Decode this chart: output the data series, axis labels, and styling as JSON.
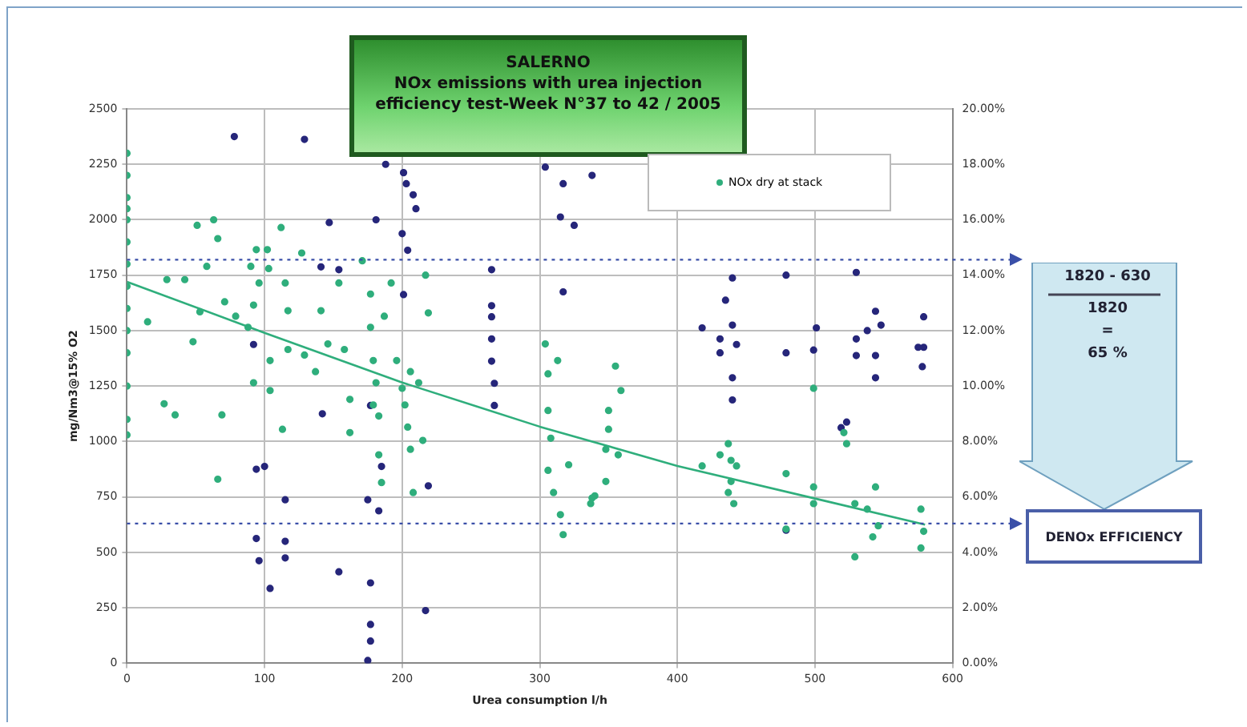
{
  "chart_data": {
    "type": "scatter",
    "title": "SALERNO",
    "subtitle": "NOx emissions with urea injection efficiency test-Week N°37 to 42 / 2005",
    "xlabel": "Urea consumption l/h",
    "ylabel": "mg/Nm3@15% O2",
    "xlim": [
      0,
      600
    ],
    "xticks": [
      0,
      100,
      200,
      300,
      400,
      500,
      600
    ],
    "ylim": [
      0,
      2500
    ],
    "yticks": [
      0,
      250,
      500,
      750,
      1000,
      1250,
      1500,
      1750,
      2000,
      2250,
      2500
    ],
    "y2lim": [
      0,
      20
    ],
    "y2ticks": [
      {
        "value": 0,
        "label": "0.00%"
      },
      {
        "value": 2,
        "label": "2.00%"
      },
      {
        "value": 4,
        "label": "4.00%"
      },
      {
        "value": 6,
        "label": "6.00%"
      },
      {
        "value": 8,
        "label": "8.00%"
      },
      {
        "value": 10,
        "label": "10.00%"
      },
      {
        "value": 12,
        "label": "12.00%"
      },
      {
        "value": 14,
        "label": "14.00%"
      },
      {
        "value": 16,
        "label": "16.00%"
      },
      {
        "value": 18,
        "label": "18.00%"
      },
      {
        "value": 20,
        "label": "20.00%"
      }
    ],
    "grid": true,
    "legend": "top right",
    "marker": "circle",
    "series": [
      {
        "name": "NOx dry at stack",
        "color": "#2fae7c",
        "x": [
          0,
          0,
          0,
          0,
          0,
          0,
          0,
          0,
          0,
          0,
          0,
          0,
          0,
          0,
          15,
          27,
          35,
          29,
          42,
          48,
          51,
          63,
          66,
          58,
          53,
          69,
          66,
          71,
          79,
          88,
          90,
          94,
          96,
          92,
          92,
          102,
          103,
          104,
          104,
          112,
          113,
          115,
          117,
          117,
          127,
          129,
          137,
          141,
          146,
          154,
          158,
          162,
          162,
          171,
          177,
          177,
          179,
          181,
          179,
          183,
          183,
          185,
          187,
          192,
          196,
          200,
          202,
          204,
          206,
          206,
          208,
          212,
          215,
          217,
          219,
          304,
          306,
          313,
          306,
          308,
          306,
          310,
          315,
          317,
          321,
          337,
          340,
          338,
          350,
          350,
          348,
          355,
          359,
          348,
          357,
          418,
          431,
          437,
          439,
          439,
          441,
          443,
          437,
          479,
          479,
          499,
          499,
          499,
          521,
          523,
          529,
          529,
          538,
          544,
          546,
          542,
          577,
          577,
          579
        ],
        "values": [
          1030,
          1100,
          1250,
          1400,
          1500,
          1600,
          1700,
          1800,
          1900,
          2000,
          2050,
          2100,
          2200,
          2300,
          1540,
          1170,
          1120,
          1730,
          1730,
          1450,
          1975,
          2000,
          1915,
          1790,
          1585,
          1120,
          830,
          1630,
          1565,
          1515,
          1790,
          1865,
          1715,
          1615,
          1265,
          1865,
          1780,
          1365,
          1230,
          1965,
          1055,
          1715,
          1590,
          1415,
          1850,
          1390,
          1315,
          1590,
          1440,
          1715,
          1415,
          1190,
          1040,
          1815,
          1665,
          1515,
          1365,
          1265,
          1165,
          1115,
          940,
          815,
          1565,
          1715,
          1365,
          1240,
          1165,
          1065,
          1315,
          965,
          770,
          1265,
          1005,
          1750,
          1580,
          1440,
          1305,
          1365,
          1140,
          1015,
          870,
          770,
          670,
          580,
          895,
          720,
          755,
          745,
          1140,
          1055,
          965,
          1340,
          1230,
          820,
          940,
          890,
          940,
          990,
          915,
          820,
          720,
          890,
          770,
          855,
          605,
          720,
          1240,
          795,
          1040,
          990,
          720,
          480,
          695,
          795,
          620,
          570,
          695,
          520,
          595
        ]
      },
      {
        "color": "#26267a",
        "axis": "y2",
        "x": [
          78,
          129,
          147,
          181,
          188,
          201,
          203,
          208,
          210,
          200,
          204,
          154,
          141,
          201,
          317,
          92,
          94,
          100,
          94,
          96,
          104,
          115,
          115,
          115,
          142,
          154,
          177,
          177,
          177,
          175,
          175,
          183,
          177,
          185,
          217,
          219,
          265,
          265,
          265,
          265,
          267,
          267,
          265,
          304,
          317,
          315,
          325,
          338,
          418,
          431,
          431,
          435,
          440,
          440,
          440,
          440,
          443,
          479,
          479,
          499,
          501,
          479,
          530,
          530,
          530,
          538,
          544,
          544,
          544,
          523,
          519,
          548,
          579,
          579,
          578,
          575
        ],
        "values": [
          19.0,
          18.9,
          15.9,
          16.0,
          18.0,
          17.7,
          17.3,
          16.9,
          16.4,
          15.5,
          14.9,
          14.2,
          14.3,
          13.3,
          13.4,
          11.5,
          7.0,
          7.1,
          4.5,
          3.7,
          2.7,
          5.9,
          4.4,
          3.8,
          9.0,
          3.3,
          2.9,
          1.4,
          0.8,
          0.1,
          5.9,
          5.5,
          9.3,
          7.1,
          1.9,
          6.4,
          14.2,
          12.9,
          11.7,
          10.9,
          10.1,
          9.3,
          12.5,
          17.9,
          17.3,
          16.1,
          15.8,
          17.6,
          12.1,
          11.7,
          11.2,
          13.1,
          13.9,
          12.2,
          10.3,
          9.5,
          11.5,
          14.0,
          11.2,
          11.3,
          12.1,
          4.8,
          14.1,
          11.7,
          11.1,
          12.0,
          12.7,
          11.1,
          10.3,
          8.7,
          8.5,
          12.2,
          12.5,
          11.4,
          10.7,
          11.4
        ]
      },
      {
        "type": "line",
        "color": "#2fae7c",
        "line_style": "solid",
        "marker": "none",
        "x": [
          0,
          100,
          200,
          300,
          400,
          500,
          580
        ],
        "values": [
          1720,
          1490,
          1266,
          1067,
          890,
          743,
          625
        ]
      }
    ],
    "ref_lines": [
      {
        "axis": "y",
        "value": 1820,
        "color": "#3a4fa8",
        "line_style": "dotted"
      },
      {
        "axis": "y",
        "value": 630,
        "color": "#3a4fa8",
        "line_style": "dotted"
      }
    ],
    "annotations": [
      "1820 - 630",
      "1820",
      "=",
      "65 %",
      "DENOx EFFICIENCY"
    ]
  }
}
